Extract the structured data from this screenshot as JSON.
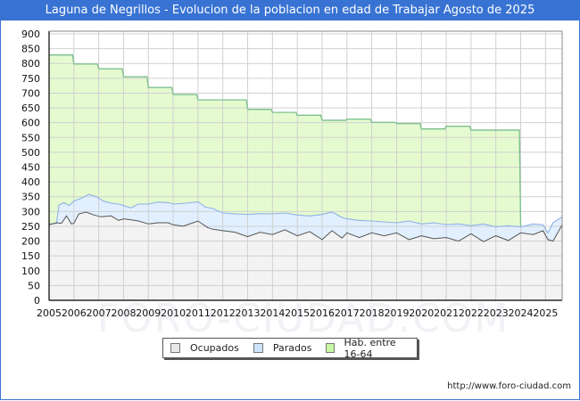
{
  "header": {
    "title": "Laguna de Negrillos - Evolucion de la poblacion en edad de Trabajar Agosto de 2025"
  },
  "footer": {
    "url": "http://www.foro-ciudad.com"
  },
  "watermark": "FORO-CIUDAD.COM",
  "colors": {
    "title_bg": "#3873d3",
    "hab_fill": "#e5fbcf",
    "hab_line": "#7cc08f",
    "parados_fill": "#e1efff",
    "parados_line": "#8fb2e6",
    "ocupados_fill": "#f3f3f3",
    "ocupados_line": "#555555",
    "grid": "#d0d0d0"
  },
  "legend": [
    {
      "label": "Ocupados",
      "color": "#e8e8e8"
    },
    {
      "label": "Parados",
      "color": "#cde3fb"
    },
    {
      "label": "Hab. entre 16-64",
      "color": "#c9f7a4"
    }
  ],
  "chart_data": {
    "type": "area",
    "title": "Laguna de Negrillos - Evolucion de la poblacion en edad de Trabajar Agosto de 2025",
    "xlabel": "",
    "ylabel": "",
    "ylim": [
      0,
      900
    ],
    "yticks": [
      0,
      50,
      100,
      150,
      200,
      250,
      300,
      350,
      400,
      450,
      500,
      550,
      600,
      650,
      700,
      750,
      800,
      850,
      900
    ],
    "xticks": [
      "2005",
      "2006",
      "2007",
      "2008",
      "2009",
      "2010",
      "2011",
      "2012",
      "2013",
      "2014",
      "2015",
      "2016",
      "2017",
      "2018",
      "2019",
      "2020",
      "2021",
      "2022",
      "2023",
      "2024",
      "2025"
    ],
    "xlim": [
      2005,
      2025.67
    ],
    "grid": true,
    "legend_position": "bottom",
    "series": [
      {
        "name": "Hab. entre 16-64",
        "step": true,
        "x": [
          2005,
          2006,
          2007,
          2008,
          2009,
          2010,
          2011,
          2012,
          2013,
          2014,
          2015,
          2016,
          2017,
          2018,
          2019,
          2020,
          2021,
          2022,
          2023
        ],
        "values": [
          829,
          798,
          782,
          755,
          719,
          695,
          677,
          677,
          645,
          635,
          625,
          608,
          612,
          601,
          597,
          579,
          588,
          575,
          575
        ],
        "end_x": 2024
      },
      {
        "name": "Parados",
        "x": [
          2005,
          2005.3,
          2005.4,
          2005.6,
          2005.8,
          2006,
          2006.3,
          2006.6,
          2006.9,
          2007.2,
          2007.5,
          2007.8,
          2008,
          2008.3,
          2008.6,
          2009,
          2009.4,
          2009.8,
          2010,
          2010.5,
          2011,
          2011.3,
          2011.6,
          2012,
          2012.5,
          2013,
          2013.5,
          2014,
          2014.5,
          2015,
          2015.5,
          2016,
          2016.4,
          2016.8,
          2017,
          2017.5,
          2018,
          2018.5,
          2019,
          2019.5,
          2020,
          2020.5,
          2021,
          2021.5,
          2022,
          2022.5,
          2023,
          2023.5,
          2024,
          2024.5,
          2024.9,
          2025.1,
          2025.3,
          2025.67
        ],
        "values": [
          258,
          260,
          322,
          330,
          320,
          335,
          345,
          358,
          350,
          335,
          328,
          325,
          320,
          312,
          325,
          325,
          332,
          330,
          325,
          328,
          333,
          315,
          310,
          295,
          292,
          290,
          293,
          292,
          295,
          288,
          285,
          290,
          298,
          280,
          275,
          270,
          268,
          265,
          262,
          268,
          258,
          262,
          256,
          258,
          252,
          258,
          248,
          252,
          248,
          258,
          255,
          228,
          262,
          282
        ]
      },
      {
        "name": "Ocupados",
        "x": [
          2005,
          2005.3,
          2005.5,
          2005.7,
          2005.9,
          2006,
          2006.2,
          2006.5,
          2006.8,
          2007.1,
          2007.5,
          2007.8,
          2008,
          2008.3,
          2008.6,
          2009,
          2009.4,
          2009.8,
          2010,
          2010.4,
          2010.8,
          2011,
          2011.4,
          2011.6,
          2012,
          2012.5,
          2013,
          2013.5,
          2014,
          2014.5,
          2015,
          2015.5,
          2016,
          2016.4,
          2016.8,
          2017,
          2017.5,
          2018,
          2018.5,
          2019,
          2019.5,
          2020,
          2020.5,
          2021,
          2021.5,
          2022,
          2022.5,
          2023,
          2023.5,
          2024,
          2024.5,
          2024.9,
          2025.1,
          2025.3,
          2025.67
        ],
        "values": [
          255,
          262,
          260,
          285,
          258,
          260,
          292,
          298,
          288,
          282,
          285,
          270,
          275,
          272,
          268,
          258,
          262,
          262,
          255,
          250,
          262,
          268,
          245,
          240,
          235,
          230,
          215,
          230,
          222,
          238,
          218,
          232,
          205,
          235,
          210,
          228,
          212,
          228,
          218,
          228,
          205,
          218,
          208,
          212,
          200,
          225,
          198,
          218,
          202,
          228,
          222,
          235,
          205,
          200,
          255
        ]
      }
    ]
  }
}
